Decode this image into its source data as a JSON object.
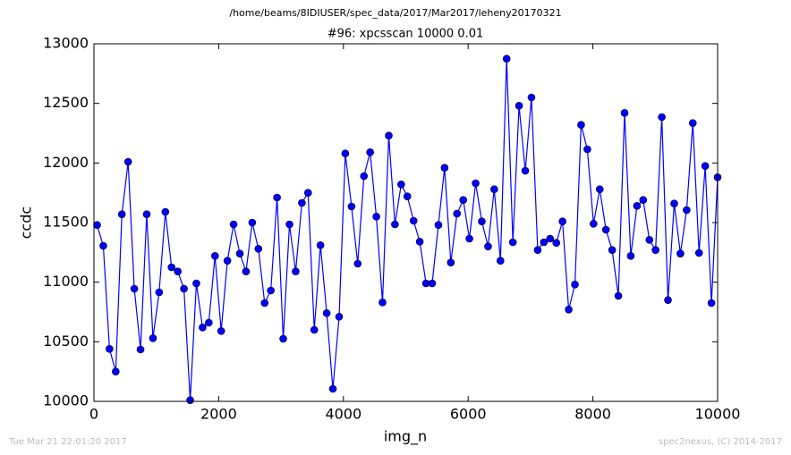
{
  "chart_data": {
    "type": "line",
    "suptitle": "/home/beams/8IDIUSER/spec_data/2017/Mar2017/leheny20170321",
    "title": "#96: xpcsscan 10000 0.01",
    "xlabel": "img_n",
    "ylabel": "ccdc",
    "footer_left": "Tue Mar 21 22:01:20 2017",
    "footer_right": "spec2nexus, (C) 2014-2017",
    "xlim": [
      0,
      10000
    ],
    "xticks": [
      0,
      2000,
      4000,
      6000,
      8000,
      10000
    ],
    "ylim": [
      10000,
      13000
    ],
    "yticks": [
      10000,
      10500,
      11000,
      11500,
      12000,
      12500,
      13000
    ],
    "grid": false,
    "x": [
      50,
      150,
      249,
      349,
      448,
      548,
      647,
      747,
      846,
      946,
      1045,
      1145,
      1244,
      1344,
      1443,
      1543,
      1642,
      1742,
      1841,
      1941,
      2040,
      2140,
      2239,
      2339,
      2438,
      2538,
      2637,
      2737,
      2836,
      2936,
      3035,
      3135,
      3234,
      3334,
      3433,
      3533,
      3632,
      3732,
      3831,
      3931,
      4030,
      4130,
      4229,
      4329,
      4428,
      4528,
      4627,
      4727,
      4826,
      4926,
      5025,
      5125,
      5224,
      5324,
      5423,
      5523,
      5622,
      5722,
      5821,
      5921,
      6020,
      6120,
      6219,
      6319,
      6418,
      6518,
      6617,
      6717,
      6816,
      6916,
      7015,
      7115,
      7214,
      7314,
      7413,
      7513,
      7612,
      7712,
      7811,
      7911,
      8010,
      8110,
      8209,
      8309,
      8408,
      8508,
      8607,
      8707,
      8806,
      8906,
      9005,
      9105,
      9204,
      9304,
      9403,
      9503,
      9602,
      9702,
      9801,
      9901,
      10000
    ],
    "series": [
      {
        "name": "ccdc",
        "color": "#0000ff",
        "values": [
          11480,
          11305,
          10440,
          10250,
          11570,
          12010,
          10945,
          10435,
          11570,
          10530,
          10915,
          11590,
          11125,
          11090,
          10945,
          10010,
          10990,
          10620,
          10660,
          11220,
          10590,
          11180,
          11485,
          11240,
          11090,
          11500,
          11280,
          10825,
          10930,
          11710,
          10525,
          11485,
          11090,
          11665,
          11750,
          10600,
          11310,
          10740,
          10105,
          10710,
          12080,
          11635,
          11155,
          11890,
          12090,
          11550,
          10830,
          12230,
          11485,
          11820,
          11720,
          11515,
          11340,
          10990,
          10990,
          11480,
          11960,
          11165,
          11575,
          11690,
          11365,
          11830,
          11510,
          11300,
          11780,
          11180,
          12875,
          11335,
          12480,
          11935,
          12550,
          11270,
          11335,
          11365,
          11330,
          11510,
          10770,
          10980,
          12320,
          12115,
          11490,
          11780,
          11440,
          11270,
          10885,
          12420,
          11220,
          11640,
          11690,
          11355,
          11270,
          12385,
          10850,
          11660,
          11240,
          11605,
          12335,
          11245,
          11975,
          10825,
          11880
        ]
      }
    ]
  }
}
